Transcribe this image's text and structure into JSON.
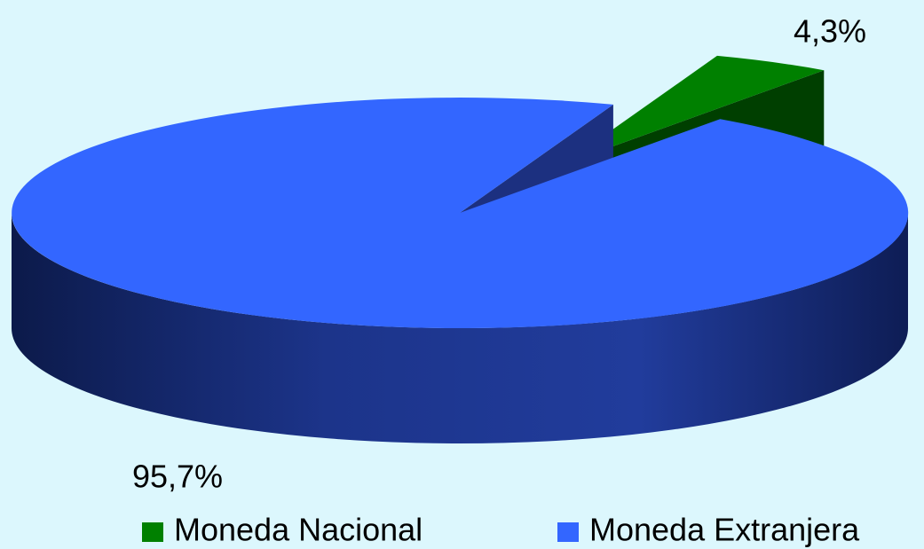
{
  "chart_data": {
    "type": "pie3d",
    "categories": [
      "Moneda Nacional",
      "Moneda Extranjera"
    ],
    "values": [
      4.3,
      95.7
    ],
    "value_labels": [
      "4,3%",
      "95,7%"
    ],
    "colors": [
      "#008000",
      "#3366ff"
    ],
    "legend": "bottom"
  }
}
